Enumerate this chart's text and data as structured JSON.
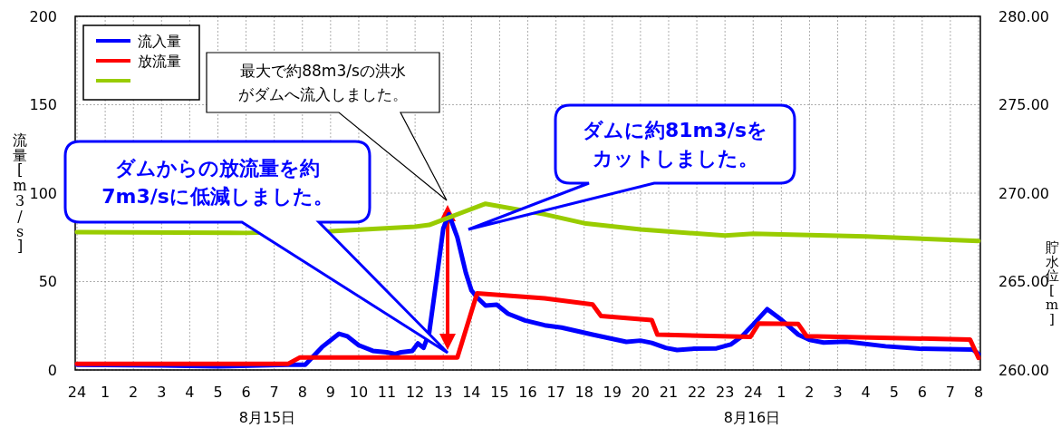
{
  "chart_data": {
    "type": "line",
    "ylabel": "流量[m3/s]",
    "y2label": "貯水位[m]",
    "xlim": [
      "--08-15T00:00",
      "--08-16T08:00"
    ],
    "xticks": [
      {
        "value": "--08-15T00:00",
        "label": "24"
      },
      {
        "value": "--08-15T01:00",
        "label": "1"
      },
      {
        "value": "--08-15T02:00",
        "label": "2"
      },
      {
        "value": "--08-15T03:00",
        "label": "3"
      },
      {
        "value": "--08-15T04:00",
        "label": "4"
      },
      {
        "value": "--08-15T05:00",
        "label": "5"
      },
      {
        "value": "--08-15T06:00",
        "label": "6"
      },
      {
        "value": "--08-15T07:00",
        "label": "7"
      },
      {
        "value": "--08-15T08:00",
        "label": "8"
      },
      {
        "value": "--08-15T09:00",
        "label": "9"
      },
      {
        "value": "--08-15T10:00",
        "label": "10"
      },
      {
        "value": "--08-15T11:00",
        "label": "11"
      },
      {
        "value": "--08-15T12:00",
        "label": "12"
      },
      {
        "value": "--08-15T13:00",
        "label": "13"
      },
      {
        "value": "--08-15T14:00",
        "label": "14"
      },
      {
        "value": "--08-15T15:00",
        "label": "15"
      },
      {
        "value": "--08-15T16:00",
        "label": "16"
      },
      {
        "value": "--08-15T17:00",
        "label": "17"
      },
      {
        "value": "--08-15T18:00",
        "label": "18"
      },
      {
        "value": "--08-15T19:00",
        "label": "19"
      },
      {
        "value": "--08-15T20:00",
        "label": "20"
      },
      {
        "value": "--08-15T21:00",
        "label": "21"
      },
      {
        "value": "--08-15T22:00",
        "label": "22"
      },
      {
        "value": "--08-15T23:00",
        "label": "23"
      },
      {
        "value": "--08-16T00:00",
        "label": "24"
      },
      {
        "value": "--08-16T01:00",
        "label": "1"
      },
      {
        "value": "--08-16T02:00",
        "label": "2"
      },
      {
        "value": "--08-16T03:00",
        "label": "3"
      },
      {
        "value": "--08-16T04:00",
        "label": "4"
      },
      {
        "value": "--08-16T05:00",
        "label": "5"
      },
      {
        "value": "--08-16T06:00",
        "label": "6"
      },
      {
        "value": "--08-16T07:00",
        "label": "7"
      },
      {
        "value": "--08-16T08:00",
        "label": "8"
      }
    ],
    "ylim": [
      0,
      200
    ],
    "yticks": [
      0,
      50,
      100,
      150,
      200
    ],
    "y2lim": [
      260,
      280
    ],
    "y2ticks": [
      {
        "value": 260,
        "label": "260.00"
      },
      {
        "value": 265,
        "label": "265.00"
      },
      {
        "value": 270,
        "label": "270.00"
      },
      {
        "value": 275,
        "label": "275.00"
      },
      {
        "value": 280,
        "label": "280.00"
      }
    ],
    "grid": true,
    "legend": "top left",
    "line_style": "solid",
    "marker": "none",
    "series": [
      {
        "name": "流入量",
        "color": "#0000ff",
        "x": [
          "--08-15T00:00",
          "--08-15T03:00",
          "--08-15T05:00",
          "--08-15T07:30",
          "--08-15T08:06",
          "--08-15T08:24",
          "--08-15T08:42",
          "--08-15T09:18",
          "--08-15T09:36",
          "--08-15T10:00",
          "--08-15T10:30",
          "--08-15T11:00",
          "--08-15T11:18",
          "--08-15T11:30",
          "--08-15T11:54",
          "--08-15T12:06",
          "--08-15T12:18",
          "--08-15T12:30",
          "--08-15T12:45",
          "--08-15T13:00",
          "--08-15T13:12",
          "--08-15T13:30",
          "--08-15T13:48",
          "--08-15T14:00",
          "--08-15T14:12",
          "--08-15T14:30",
          "--08-15T14:54",
          "--08-15T15:18",
          "--08-15T15:54",
          "--08-15T16:36",
          "--08-15T17:12",
          "--08-15T18:18",
          "--08-15T19:30",
          "--08-15T20:00",
          "--08-15T20:24",
          "--08-15T20:54",
          "--08-15T21:18",
          "--08-15T21:54",
          "--08-15T22:42",
          "--08-15T23:12",
          "--08-15T23:36",
          "--08-16T00:00",
          "--08-16T00:30",
          "--08-16T01:00",
          "--08-16T01:36",
          "--08-16T02:00",
          "--08-16T02:30",
          "--08-16T03:18",
          "--08-16T04:42",
          "--08-16T05:54",
          "--08-16T07:48",
          "--08-16T08:00"
        ],
        "values": [
          3,
          2.5,
          2,
          3,
          3,
          8,
          13,
          20.5,
          19,
          14,
          10.8,
          10,
          9,
          10,
          10.8,
          15,
          12.5,
          21,
          50,
          80,
          88,
          75,
          55,
          45,
          41,
          36.4,
          36.9,
          31.8,
          28,
          25.3,
          24,
          20,
          15.9,
          16.6,
          15.3,
          12.5,
          11.3,
          12,
          12.2,
          14.4,
          19,
          25.7,
          34.4,
          28.4,
          20,
          17,
          15.5,
          16,
          13.4,
          12,
          11.5,
          9
        ]
      },
      {
        "name": "放流量",
        "color": "#ff0000",
        "x": [
          "--08-15T00:00",
          "--08-15T07:30",
          "--08-15T07:54",
          "--08-15T13:30",
          "--08-15T14:12",
          "--08-15T16:36",
          "--08-15T18:18",
          "--08-15T18:36",
          "--08-15T20:24",
          "--08-15T20:36",
          "--08-15T23:54",
          "--08-16T00:12",
          "--08-16T01:36",
          "--08-16T01:54",
          "--08-16T07:42",
          "--08-16T08:00"
        ],
        "values": [
          3.5,
          3.5,
          7,
          7,
          43.3,
          40.5,
          37,
          30.5,
          28.2,
          20,
          18.7,
          26.3,
          26,
          19.1,
          17.2,
          6.8
        ]
      },
      {
        "color": "#99cc00",
        "axis": "y2",
        "x": [
          "--08-15T00:00",
          "--08-15T06:00",
          "--08-15T09:00",
          "--08-15T12:00",
          "--08-15T12:30",
          "--08-15T14:30",
          "--08-15T16:36",
          "--08-15T18:00",
          "--08-15T20:00",
          "--08-15T23:00",
          "--08-16T00:00",
          "--08-16T04:00",
          "--08-16T08:00"
        ],
        "values": [
          267.8,
          267.75,
          267.85,
          268.1,
          268.2,
          269.4,
          268.8,
          268.3,
          267.95,
          267.6,
          267.7,
          267.55,
          267.3
        ]
      }
    ],
    "annotations": [
      "最大で約88m3/sの洪水がダムへ流入しました。",
      "ダムからの放流量を約7m3/sに低減しました。",
      "ダムに約81m3/sをカットしました。",
      "8月15日",
      "8月16日"
    ]
  }
}
